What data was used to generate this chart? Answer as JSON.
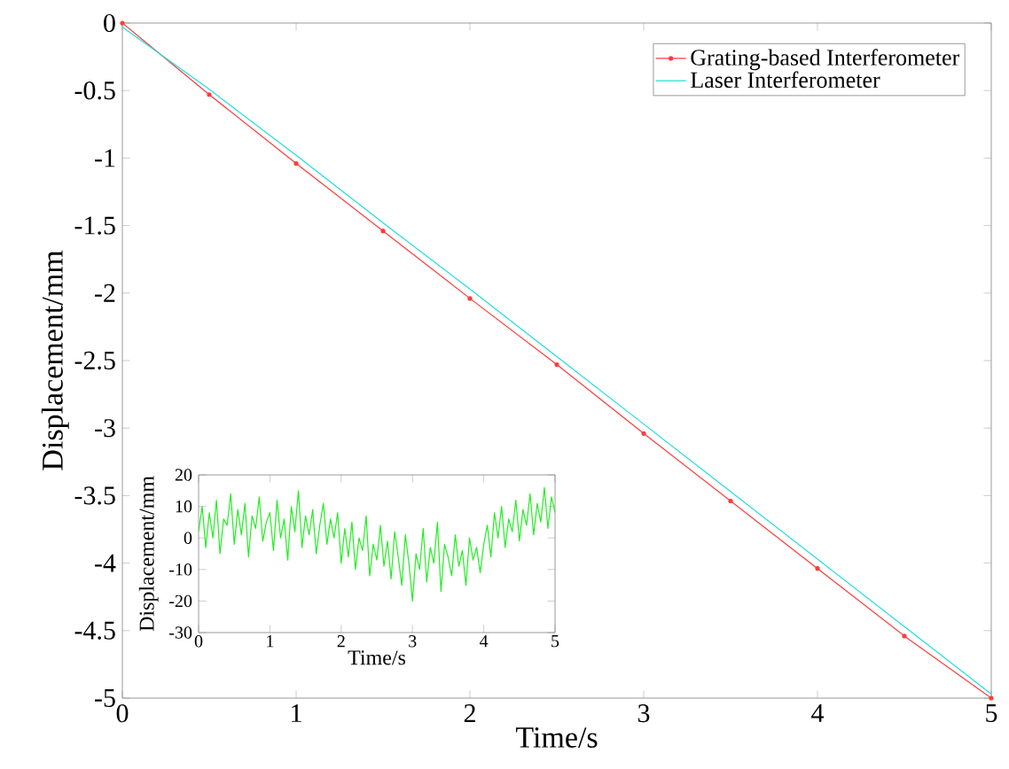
{
  "chart_data": [
    {
      "type": "line",
      "xlabel": "Time/s",
      "ylabel": "Displacement/mm",
      "x": [
        0,
        0.5,
        1,
        1.5,
        2,
        2.5,
        3,
        3.5,
        4,
        4.5,
        5
      ],
      "series": [
        {
          "name": "Grating-based Interferometer",
          "color": "#ff3b3b",
          "marker": "circle",
          "values": [
            0,
            -0.53,
            -1.04,
            -1.54,
            -2.04,
            -2.53,
            -3.04,
            -3.54,
            -4.04,
            -4.54,
            -5
          ]
        },
        {
          "name": "Laser Interferometer",
          "color": "#22dddd",
          "values": [
            -0.03,
            -0.49,
            -0.98,
            -1.48,
            -1.97,
            -2.47,
            -2.97,
            -3.47,
            -3.97,
            -4.47,
            -4.97
          ]
        }
      ],
      "xlim": [
        0,
        5
      ],
      "ylim": [
        -5,
        0
      ],
      "xticks": [
        0,
        1,
        2,
        3,
        4,
        5
      ],
      "yticks": [
        -5,
        -4.5,
        -4,
        -3.5,
        -3,
        -2.5,
        -2,
        -1.5,
        -1,
        -0.5,
        0
      ],
      "legend": "top right"
    },
    {
      "type": "line",
      "xlabel": "Time/s",
      "ylabel": "Displacement/mm",
      "x": [
        0,
        0.05,
        0.1,
        0.15,
        0.2,
        0.25,
        0.3,
        0.35,
        0.4,
        0.45,
        0.5,
        0.55,
        0.6,
        0.65,
        0.7,
        0.75,
        0.8,
        0.85,
        0.9,
        0.95,
        1,
        1.05,
        1.1,
        1.15,
        1.2,
        1.25,
        1.3,
        1.35,
        1.4,
        1.45,
        1.5,
        1.55,
        1.6,
        1.65,
        1.7,
        1.75,
        1.8,
        1.85,
        1.9,
        1.95,
        2,
        2.05,
        2.1,
        2.15,
        2.2,
        2.25,
        2.3,
        2.35,
        2.4,
        2.45,
        2.5,
        2.55,
        2.6,
        2.65,
        2.7,
        2.75,
        2.8,
        2.85,
        2.9,
        2.95,
        3,
        3.05,
        3.1,
        3.15,
        3.2,
        3.25,
        3.3,
        3.35,
        3.4,
        3.45,
        3.5,
        3.55,
        3.6,
        3.65,
        3.7,
        3.75,
        3.8,
        3.85,
        3.9,
        3.95,
        4,
        4.05,
        4.1,
        4.15,
        4.2,
        4.25,
        4.3,
        4.35,
        4.4,
        4.45,
        4.5,
        4.55,
        4.6,
        4.65,
        4.7,
        4.75,
        4.8,
        4.85,
        4.9,
        4.95,
        5
      ],
      "series": [
        {
          "color": "#22ee22",
          "values": [
            2,
            10,
            -3,
            8,
            0,
            12,
            -5,
            6,
            4,
            14,
            -2,
            9,
            1,
            11,
            -6,
            7,
            3,
            13,
            -1,
            5,
            8,
            -4,
            12,
            0,
            6,
            -7,
            10,
            2,
            15,
            -3,
            7,
            1,
            9,
            -5,
            4,
            11,
            -2,
            6,
            0,
            8,
            -8,
            3,
            -6,
            5,
            -10,
            0,
            -4,
            7,
            -12,
            -2,
            -7,
            4,
            -9,
            -1,
            -13,
            2,
            -6,
            -15,
            1,
            -8,
            -20,
            -5,
            -10,
            3,
            -14,
            -3,
            -8,
            5,
            -17,
            -2,
            -6,
            -12,
            1,
            -9,
            -4,
            -15,
            0,
            -7,
            -3,
            -11,
            -2,
            4,
            -6,
            8,
            0,
            10,
            -3,
            6,
            2,
            12,
            -1,
            9,
            4,
            14,
            1,
            11,
            5,
            16,
            3,
            13,
            8
          ]
        }
      ],
      "xlim": [
        0,
        5
      ],
      "ylim": [
        -30,
        20
      ],
      "xticks": [
        0,
        1,
        2,
        3,
        4,
        5
      ],
      "yticks": [
        -30,
        -20,
        -10,
        0,
        10,
        20
      ]
    }
  ]
}
